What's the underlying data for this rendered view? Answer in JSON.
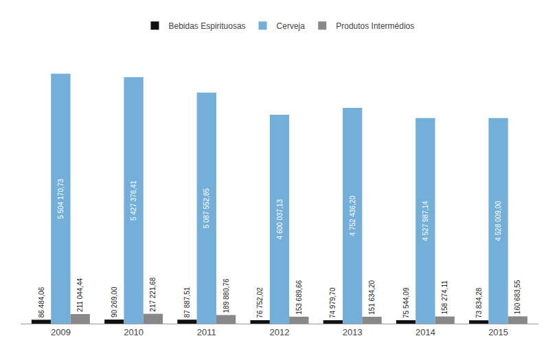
{
  "chart_data": {
    "type": "bar",
    "categories": [
      "2009",
      "2010",
      "2011",
      "2012",
      "2013",
      "2014",
      "2015"
    ],
    "series": [
      {
        "name": "Bebidas Espirituosas",
        "color": "#111111",
        "values": [
          86484.06,
          90269.0,
          87887.51,
          76752.02,
          74979.7,
          75544.09,
          73834.28
        ],
        "value_labels": [
          "86 484,06",
          "90 269,00",
          "87 887,51",
          "76 752,02",
          "74 979,70",
          "75 544,09",
          "73 834,28"
        ]
      },
      {
        "name": "Cerveja",
        "color": "#74AFDA",
        "values": [
          5504170.73,
          5427376.41,
          5087552.85,
          4600037.13,
          4752436.2,
          4527987.14,
          4528009.0
        ],
        "value_labels": [
          "5 504 170,73",
          "5 427 376,41",
          "5 087 552,85",
          "4 600 037,13",
          "4 752 436,20",
          "4 527 987,14",
          "4 528 009,00"
        ]
      },
      {
        "name": "Produtos Intermédios",
        "color": "#888888",
        "values": [
          211044.44,
          217221.68,
          189880.76,
          153689.66,
          151634.2,
          158274.11,
          160683.55
        ],
        "value_labels": [
          "211 044,44",
          "217 221,68",
          "189 880,76",
          "153 689,66",
          "151 634,20",
          "158 274,11",
          "160 683,55"
        ]
      }
    ],
    "ylim": [
      0,
      6219712.9249
    ],
    "grid": false,
    "legend": "top",
    "data_labels": true,
    "tick_labels": "x"
  }
}
